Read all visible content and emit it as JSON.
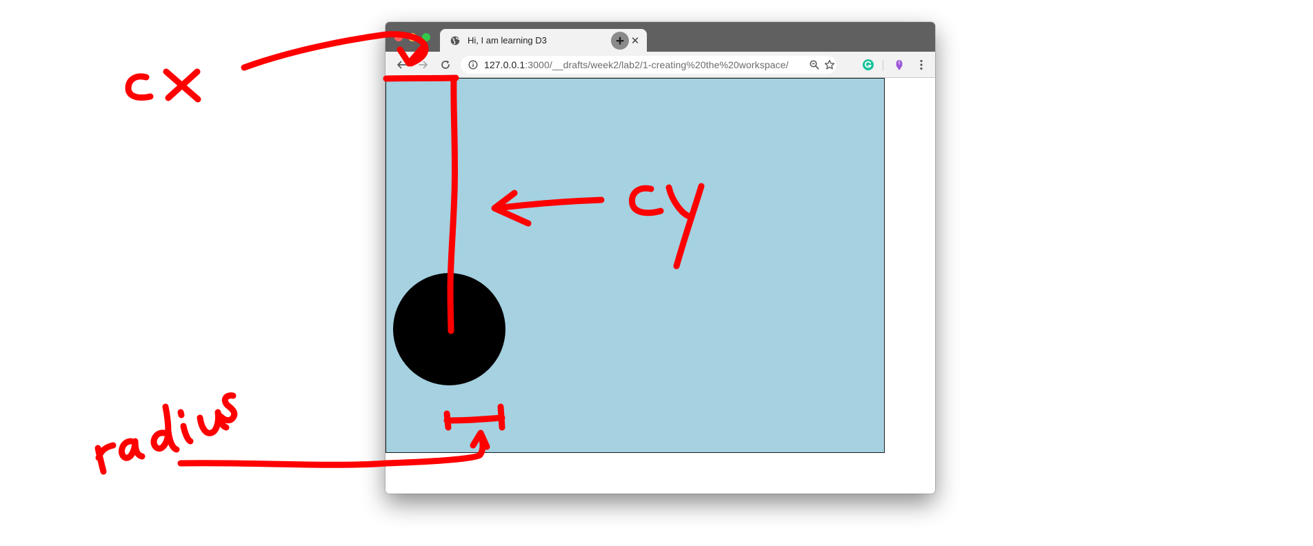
{
  "browser": {
    "tab": {
      "title": "Hi, I am learning D3",
      "close_label": "✕"
    },
    "new_tab_label": "+",
    "address_bar": {
      "host": "127.0.0.1",
      "path": ":3000/__drafts/week2/lab2/1-creating%20the%20workspace/"
    },
    "icons": {
      "favicon": "globe-icon",
      "back": "back-arrow-icon",
      "forward": "forward-arrow-icon",
      "reload": "reload-icon",
      "info": "info-icon",
      "zoom": "zoom-icon",
      "bookmark": "star-icon",
      "extension_1": "grammarly-icon",
      "extension_2": "purple-extension-icon",
      "menu": "kebab-menu-icon"
    }
  },
  "page": {
    "canvas_color": "#a5d1e1",
    "circle_color": "#000000"
  },
  "annotations": {
    "color": "#ff0000",
    "labels": {
      "cx": "cx",
      "cy": "cy",
      "radius": "radius"
    }
  }
}
